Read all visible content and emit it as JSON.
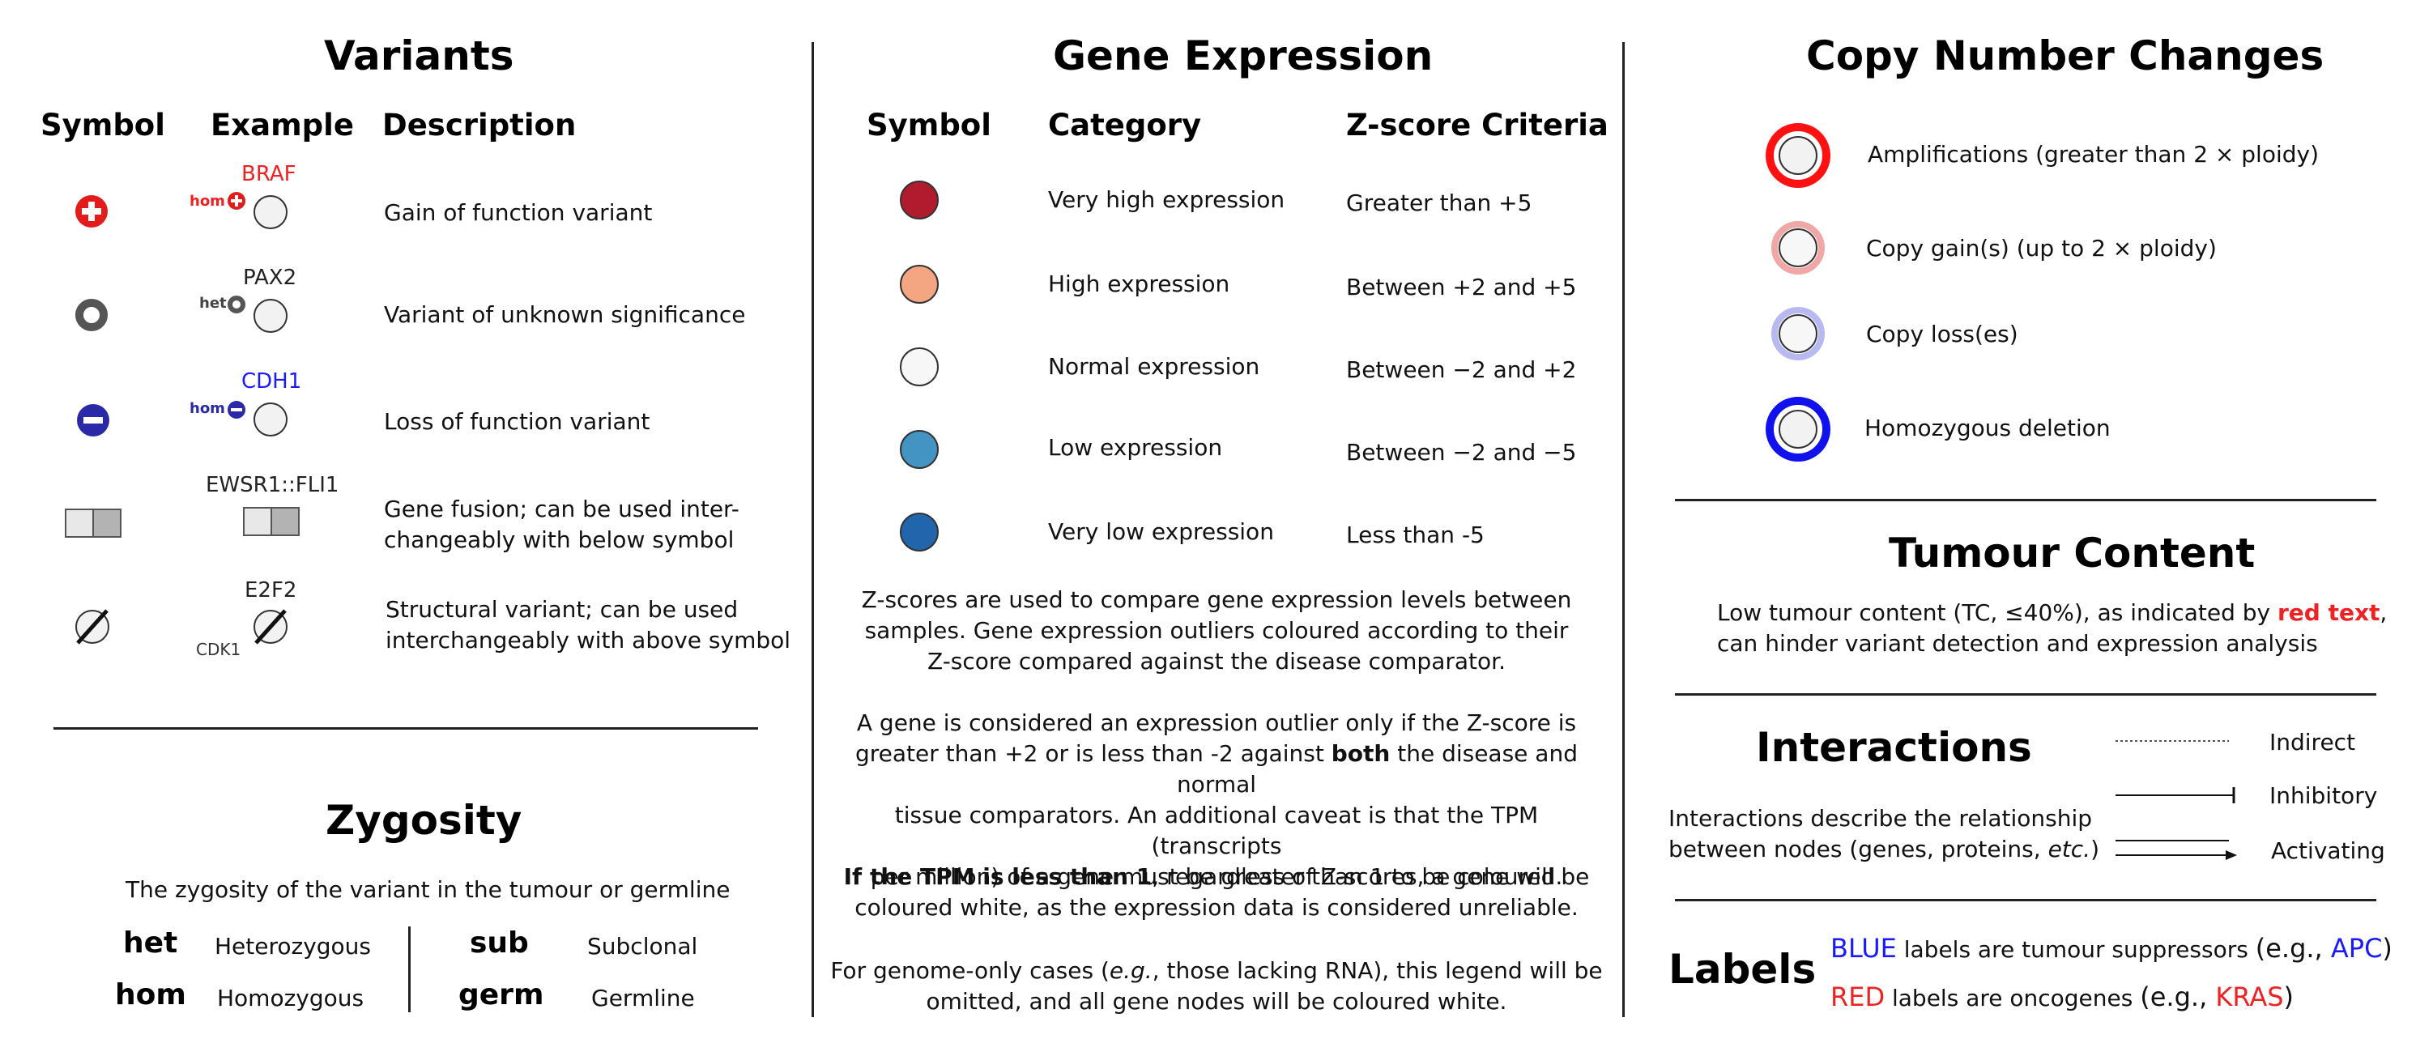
{
  "colors": {
    "red": "#e41b1b",
    "blue": "#2a2aa8",
    "gene_blue": "#1a1aff",
    "vh": "#b01c2e",
    "hi": "#f4a582",
    "norm": "#f7f7f7",
    "lo": "#4393c3",
    "vl": "#2166ac"
  },
  "variants": {
    "title": "Variants",
    "headers": {
      "symbol": "Symbol",
      "example": "Example",
      "description": "Description"
    },
    "rows": [
      {
        "gene": "BRAF",
        "tag": "hom",
        "description": "Gain of function variant",
        "icon": "plus-circle-icon"
      },
      {
        "gene": "PAX2",
        "tag": "het",
        "description": "Variant of unknown significance",
        "icon": "ring-icon"
      },
      {
        "gene": "CDH1",
        "tag": "hom",
        "description": "Loss of function variant",
        "icon": "minus-circle-icon"
      },
      {
        "gene": "EWSR1::FLI1",
        "description_1": "Gene fusion; can be used inter-",
        "description_2": "changeably with below symbol",
        "icon": "fusion-icon"
      },
      {
        "gene": "E2F2",
        "gene2": "CDK1",
        "description_1": "Structural variant; can be used",
        "description_2": "interchangeably with above symbol",
        "icon": "structural-variant-icon"
      }
    ]
  },
  "zygosity": {
    "title": "Zygosity",
    "subtitle": "The zygosity of the variant in the tumour or germline",
    "items": [
      {
        "key": "het",
        "value": "Heterozygous"
      },
      {
        "key": "hom",
        "value": "Homozygous"
      },
      {
        "key": "sub",
        "value": "Subclonal"
      },
      {
        "key": "germ",
        "value": "Germline"
      }
    ]
  },
  "expression": {
    "title": "Gene Expression",
    "headers": {
      "symbol": "Symbol",
      "category": "Category",
      "criteria": "Z-score Criteria"
    },
    "rows": [
      {
        "category": "Very high expression",
        "criteria": "Greater than +5"
      },
      {
        "category": "High expression",
        "criteria": "Between +2 and +5"
      },
      {
        "category": "Normal expression",
        "criteria": "Between −2 and +2"
      },
      {
        "category": "Low expression",
        "criteria": "Between −2 and −5"
      },
      {
        "category": "Very low expression",
        "criteria": "Less than -5"
      }
    ],
    "para1": [
      "Z-scores are used to compare gene expression levels between",
      "samples. Gene expression outliers coloured according to their",
      "Z-score compared against the disease comparator."
    ],
    "para2_line1": "A gene is considered an expression outlier only if the Z-score is",
    "para2_line2_a": "greater than +2 or is less than -2 against ",
    "para2_line2_b": "both",
    "para2_line2_c": " the disease and normal",
    "para2_line3": "tissue comparators. An additional caveat is that the TPM (transcripts",
    "para2_line4": "per million) of a gene must be greater than 1 to be coloured.",
    "para3_bold": "If the TPM is less than 1",
    "para3_rest": ", regardless of Z-scores, a gene will be",
    "para3_line2": "coloured white, as the expression data is considered unreliable.",
    "para4_a": "For genome-only cases (",
    "para4_i": "e.g.",
    "para4_b": ", those lacking RNA), this legend will be",
    "para4_line2": "omitted, and all gene nodes will be coloured white."
  },
  "copy_number": {
    "title": "Copy Number Changes",
    "items": [
      "Amplifications (greater than 2 × ploidy)",
      "Copy gain(s) (up to 2 × ploidy)",
      "Copy loss(es)",
      "Homozygous deletion"
    ]
  },
  "tumour": {
    "title": "Tumour Content",
    "line1_a": "Low tumour content (TC, ≤40%), as indicated by ",
    "line1_red": "red text",
    "line1_b": ",",
    "line2": "can hinder variant detection and expression analysis"
  },
  "interactions": {
    "title": "Interactions",
    "desc1": "Interactions describe the relationship",
    "desc2_a": "between nodes (genes, proteins, ",
    "desc2_i": "etc.",
    "desc2_b": ")",
    "types": [
      "Indirect",
      "Inhibitory",
      "Activating"
    ]
  },
  "labels": {
    "title": "Labels",
    "blue_word": "BLUE",
    "blue_rest": " labels are tumour suppressors ",
    "blue_eg_a": "(e.g., ",
    "blue_eg_gene": "APC",
    "blue_eg_b": ")",
    "red_word": "RED",
    "red_rest": " labels are oncogenes ",
    "red_eg_a": "(e.g., ",
    "red_eg_gene": "KRAS",
    "red_eg_b": ")"
  }
}
